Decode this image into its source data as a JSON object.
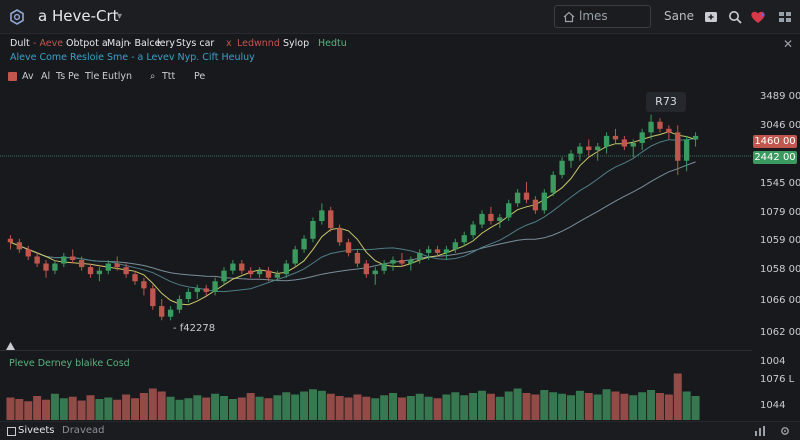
{
  "app": {
    "title": "a Heve-Crt"
  },
  "topbar": {
    "search_text": "lmes",
    "label": "Sane",
    "icons": [
      "logo-icon",
      "home-icon",
      "plus-square-icon",
      "search-icon",
      "heart-icon",
      "grid-icon"
    ]
  },
  "legend": {
    "row1": [
      {
        "text": "Dult",
        "color": "#e6e8eb"
      },
      {
        "text": "- Aeve",
        "color": "#c0574e"
      },
      {
        "text": "Obtpot a",
        "color": "#e6e8eb"
      },
      {
        "text": "Majn",
        "color": "#e6e8eb"
      },
      {
        "text": "- Balce",
        "color": "#e6e8eb"
      },
      {
        "text": "lery",
        "color": "#e6e8eb"
      },
      {
        "text": "Stys car",
        "color": "#e6e8eb"
      },
      {
        "text": "x",
        "color": "#c0574e"
      },
      {
        "text": "Ledwnnd",
        "color": "#c0574e"
      },
      {
        "text": "Sylop",
        "color": "#e6e8eb"
      },
      {
        "text": "Hedtu",
        "color": "#59b37e"
      }
    ],
    "row2": "Aleve Come  Resloie  Sme  -  a  Levev  Nyp.  Cift  Heuluy",
    "row2_color": "#3aa2c9",
    "tools": [
      {
        "text": "Av",
        "color": "#c9cdd3"
      },
      {
        "text": "Al",
        "color": "#c9cdd3"
      },
      {
        "text": "Ts",
        "color": "#c9cdd3"
      },
      {
        "text": "Pe",
        "color": "#c9cdd3"
      },
      {
        "text": "Tle",
        "color": "#c9cdd3"
      },
      {
        "text": "Eutlyn",
        "color": "#c9cdd3"
      },
      {
        "text": "Ttt",
        "color": "#c9cdd3"
      },
      {
        "text": "Pe",
        "color": "#c9cdd3"
      }
    ]
  },
  "price_scale": [
    "3489 00",
    "3046 00",
    "1545 00",
    "1079 00",
    "1059 00",
    "1058 00",
    "1066 00",
    "1062 00"
  ],
  "price_tags": {
    "red": "1460 00",
    "green": "2442 00"
  },
  "callout": "R73",
  "low_label": "- f42278",
  "volume": {
    "legend": "Pleve Derney blaike Cosd",
    "scale": [
      "1004",
      "1076 L",
      "1044"
    ]
  },
  "bottom": {
    "tabs": [
      "Siveets",
      "Dravead"
    ]
  },
  "colors": {
    "up": "#3b9a5f",
    "down": "#c0574e",
    "background": "#17191c",
    "ma_fast": "#c9c86a",
    "ma_mid": "#4f7e86",
    "ma_slow": "#7a8f9a"
  },
  "chart_data": {
    "type": "candlestick",
    "candles": [
      [
        66,
        67,
        63,
        65
      ],
      [
        65,
        66,
        62,
        63
      ],
      [
        63,
        64,
        60,
        61
      ],
      [
        61,
        62,
        58,
        59
      ],
      [
        59,
        60,
        55,
        57
      ],
      [
        57,
        60,
        56,
        59
      ],
      [
        59,
        62,
        58,
        61
      ],
      [
        61,
        63,
        59,
        60
      ],
      [
        60,
        61,
        57,
        58
      ],
      [
        58,
        59,
        55,
        56
      ],
      [
        56,
        58,
        54,
        57
      ],
      [
        57,
        60,
        56,
        59
      ],
      [
        59,
        61,
        57,
        58
      ],
      [
        58,
        59,
        55,
        56
      ],
      [
        56,
        57,
        53,
        54
      ],
      [
        54,
        55,
        50,
        52
      ],
      [
        52,
        53,
        46,
        47
      ],
      [
        47,
        49,
        43,
        44
      ],
      [
        44,
        47,
        43,
        46
      ],
      [
        46,
        50,
        45,
        49
      ],
      [
        49,
        52,
        48,
        51
      ],
      [
        51,
        53,
        49,
        52
      ],
      [
        52,
        53,
        50,
        51
      ],
      [
        51,
        55,
        50,
        54
      ],
      [
        54,
        58,
        53,
        57
      ],
      [
        57,
        60,
        56,
        59
      ],
      [
        59,
        60,
        56,
        57
      ],
      [
        57,
        58,
        55,
        56
      ],
      [
        56,
        58,
        55,
        57
      ],
      [
        57,
        58,
        54,
        55
      ],
      [
        55,
        57,
        54,
        56
      ],
      [
        56,
        60,
        55,
        59
      ],
      [
        59,
        64,
        58,
        63
      ],
      [
        63,
        67,
        62,
        66
      ],
      [
        66,
        72,
        65,
        71
      ],
      [
        71,
        76,
        70,
        74
      ],
      [
        74,
        75,
        68,
        69
      ],
      [
        69,
        70,
        64,
        65
      ],
      [
        65,
        66,
        61,
        62
      ],
      [
        62,
        63,
        58,
        59
      ],
      [
        59,
        60,
        55,
        56
      ],
      [
        56,
        58,
        53,
        57
      ],
      [
        57,
        60,
        56,
        59
      ],
      [
        59,
        61,
        57,
        60
      ],
      [
        60,
        62,
        58,
        59
      ],
      [
        59,
        61,
        57,
        60
      ],
      [
        60,
        63,
        59,
        62
      ],
      [
        62,
        64,
        60,
        63
      ],
      [
        63,
        64,
        61,
        62
      ],
      [
        62,
        64,
        60,
        63
      ],
      [
        63,
        66,
        62,
        65
      ],
      [
        65,
        68,
        64,
        67
      ],
      [
        67,
        71,
        66,
        70
      ],
      [
        70,
        74,
        69,
        73
      ],
      [
        73,
        75,
        70,
        71
      ],
      [
        71,
        73,
        69,
        72
      ],
      [
        72,
        77,
        71,
        76
      ],
      [
        76,
        80,
        75,
        79
      ],
      [
        79,
        82,
        76,
        77
      ],
      [
        77,
        78,
        73,
        74
      ],
      [
        74,
        80,
        73,
        79
      ],
      [
        79,
        85,
        78,
        84
      ],
      [
        84,
        89,
        83,
        88
      ],
      [
        88,
        91,
        86,
        90
      ],
      [
        90,
        93,
        88,
        92
      ],
      [
        92,
        94,
        89,
        91
      ],
      [
        91,
        93,
        88,
        92
      ],
      [
        92,
        96,
        90,
        95
      ],
      [
        95,
        97,
        93,
        94
      ],
      [
        94,
        95,
        91,
        92
      ],
      [
        92,
        94,
        89,
        93
      ],
      [
        93,
        97,
        91,
        96
      ],
      [
        96,
        101,
        94,
        99
      ],
      [
        99,
        100,
        96,
        97
      ],
      [
        97,
        98,
        94,
        96
      ],
      [
        96,
        98,
        84,
        88
      ],
      [
        88,
        95,
        85,
        94
      ],
      [
        94,
        96,
        92,
        95
      ]
    ],
    "volumes": [
      30,
      28,
      25,
      32,
      27,
      35,
      29,
      31,
      26,
      33,
      28,
      30,
      27,
      34,
      29,
      36,
      42,
      38,
      31,
      27,
      29,
      33,
      30,
      35,
      32,
      28,
      30,
      36,
      31,
      29,
      33,
      37,
      34,
      38,
      41,
      39,
      35,
      32,
      30,
      34,
      31,
      29,
      33,
      36,
      30,
      32,
      35,
      31,
      29,
      34,
      37,
      33,
      36,
      39,
      35,
      31,
      38,
      42,
      36,
      34,
      40,
      37,
      35,
      33,
      39,
      36,
      34,
      41,
      38,
      35,
      33,
      37,
      40,
      36,
      34,
      62,
      38,
      32
    ],
    "price_scale_labels": [
      "3489 00",
      "3046 00",
      "1545 00",
      "1079 00",
      "1059 00",
      "1058 00",
      "1066 00",
      "1062 00"
    ],
    "volume_scale_labels": [
      "1004",
      "1076 L",
      "1044"
    ]
  }
}
